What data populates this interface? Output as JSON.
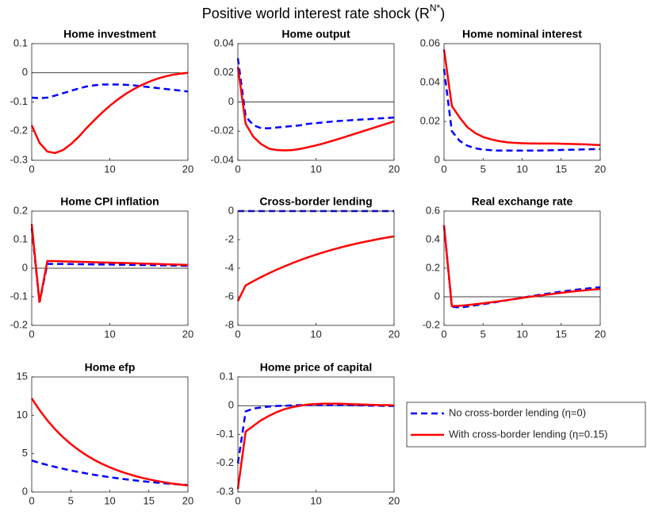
{
  "suptitle": [
    "Positive world interest rate shock (R",
    "N*",
    ")"
  ],
  "chart_data": [
    {
      "type": "line",
      "title": "Home investment",
      "x": [
        0,
        1,
        2,
        3,
        4,
        5,
        6,
        7,
        8,
        9,
        10,
        11,
        12,
        13,
        14,
        15,
        16,
        17,
        18,
        19,
        20
      ],
      "xlim": [
        0,
        20
      ],
      "xticks": [
        0,
        10,
        20
      ],
      "ylim": [
        -0.3,
        0.1
      ],
      "yticks": [
        -0.3,
        -0.2,
        -0.1,
        0,
        0.1
      ],
      "zero_line": true,
      "series": [
        {
          "name": "No cross-border lending (η=0)",
          "color": "#0000ff",
          "dashed": true,
          "values": [
            -0.085,
            -0.087,
            -0.085,
            -0.078,
            -0.07,
            -0.062,
            -0.054,
            -0.047,
            -0.043,
            -0.04,
            -0.04,
            -0.04,
            -0.041,
            -0.043,
            -0.046,
            -0.049,
            -0.052,
            -0.055,
            -0.058,
            -0.061,
            -0.064
          ]
        },
        {
          "name": "With cross-border lending (η=0.15)",
          "color": "#ff0000",
          "dashed": false,
          "values": [
            -0.18,
            -0.24,
            -0.27,
            -0.275,
            -0.265,
            -0.245,
            -0.22,
            -0.19,
            -0.163,
            -0.137,
            -0.113,
            -0.092,
            -0.073,
            -0.057,
            -0.043,
            -0.031,
            -0.021,
            -0.013,
            -0.007,
            -0.003,
            0.0
          ]
        }
      ]
    },
    {
      "type": "line",
      "title": "Home output",
      "x": [
        0,
        1,
        2,
        3,
        4,
        5,
        6,
        7,
        8,
        9,
        10,
        11,
        12,
        13,
        14,
        15,
        16,
        17,
        18,
        19,
        20
      ],
      "xlim": [
        0,
        20
      ],
      "xticks": [
        0,
        10,
        20
      ],
      "ylim": [
        -0.04,
        0.04
      ],
      "yticks": [
        -0.04,
        -0.02,
        0,
        0.02,
        0.04
      ],
      "zero_line": true,
      "series": [
        {
          "name": "No cross-border lending (η=0)",
          "color": "#0000ff",
          "dashed": true,
          "values": [
            0.03,
            -0.01,
            -0.016,
            -0.018,
            -0.018,
            -0.0175,
            -0.017,
            -0.0165,
            -0.016,
            -0.015,
            -0.0145,
            -0.014,
            -0.0135,
            -0.013,
            -0.0127,
            -0.0123,
            -0.012,
            -0.0117,
            -0.0113,
            -0.011,
            -0.0107
          ]
        },
        {
          "name": "With cross-border lending (η=0.15)",
          "color": "#ff0000",
          "dashed": false,
          "values": [
            0.024,
            -0.015,
            -0.024,
            -0.029,
            -0.032,
            -0.033,
            -0.0332,
            -0.033,
            -0.0322,
            -0.031,
            -0.0298,
            -0.0284,
            -0.0268,
            -0.0252,
            -0.0235,
            -0.0218,
            -0.0201,
            -0.0184,
            -0.0167,
            -0.015,
            -0.0133
          ]
        }
      ]
    },
    {
      "type": "line",
      "title": "Home nominal interest",
      "x": [
        0,
        1,
        2,
        3,
        4,
        5,
        6,
        7,
        8,
        9,
        10,
        11,
        12,
        13,
        14,
        15,
        16,
        17,
        18,
        19,
        20
      ],
      "xlim": [
        0,
        20
      ],
      "xticks": [
        0,
        5,
        10,
        15,
        20
      ],
      "ylim": [
        0,
        0.06
      ],
      "yticks": [
        0,
        0.02,
        0.04,
        0.06
      ],
      "zero_line": false,
      "series": [
        {
          "name": "No cross-border lending (η=0)",
          "color": "#0000ff",
          "dashed": true,
          "values": [
            0.047,
            0.015,
            0.01,
            0.0075,
            0.0062,
            0.0055,
            0.0052,
            0.005,
            0.005,
            0.005,
            0.005,
            0.005,
            0.005,
            0.0051,
            0.0052,
            0.0053,
            0.0054,
            0.0055,
            0.0056,
            0.0057,
            0.0058
          ]
        },
        {
          "name": "With cross-border lending (η=0.15)",
          "color": "#ff0000",
          "dashed": false,
          "values": [
            0.057,
            0.028,
            0.022,
            0.017,
            0.014,
            0.012,
            0.0108,
            0.0099,
            0.0093,
            0.009,
            0.0088,
            0.0087,
            0.0086,
            0.0086,
            0.0086,
            0.0085,
            0.0084,
            0.0083,
            0.0082,
            0.008,
            0.0078
          ]
        }
      ]
    },
    {
      "type": "line",
      "title": "Home CPI inflation",
      "x": [
        0,
        1,
        2,
        3,
        4,
        5,
        6,
        7,
        8,
        9,
        10,
        11,
        12,
        13,
        14,
        15,
        16,
        17,
        18,
        19,
        20
      ],
      "xlim": [
        0,
        20
      ],
      "xticks": [
        0,
        10,
        20
      ],
      "ylim": [
        -0.2,
        0.2
      ],
      "yticks": [
        -0.2,
        -0.1,
        0,
        0.1,
        0.2
      ],
      "zero_line": true,
      "series": [
        {
          "name": "No cross-border lending (η=0)",
          "color": "#0000ff",
          "dashed": true,
          "values": [
            0.14,
            -0.12,
            0.015,
            0.015,
            0.015,
            0.0145,
            0.014,
            0.0137,
            0.0133,
            0.013,
            0.0127,
            0.0123,
            0.012,
            0.0116,
            0.0112,
            0.0108,
            0.0104,
            0.01,
            0.0095,
            0.009,
            0.0085
          ]
        },
        {
          "name": "With cross-border lending (η=0.15)",
          "color": "#ff0000",
          "dashed": false,
          "values": [
            0.155,
            -0.12,
            0.025,
            0.025,
            0.024,
            0.0232,
            0.0225,
            0.0218,
            0.021,
            0.0202,
            0.0195,
            0.0187,
            0.018,
            0.0172,
            0.0164,
            0.0156,
            0.0148,
            0.014,
            0.0132,
            0.0124,
            0.0116
          ]
        }
      ]
    },
    {
      "type": "line",
      "title": "Cross-border lending",
      "x": [
        0,
        1,
        2,
        3,
        4,
        5,
        6,
        7,
        8,
        9,
        10,
        11,
        12,
        13,
        14,
        15,
        16,
        17,
        18,
        19,
        20
      ],
      "xlim": [
        0,
        20
      ],
      "xticks": [
        0,
        10,
        20
      ],
      "ylim": [
        -8,
        0
      ],
      "yticks": [
        -8,
        -6,
        -4,
        -2,
        0
      ],
      "zero_line": true,
      "series": [
        {
          "name": "No cross-border lending (η=0)",
          "color": "#0000ff",
          "dashed": true,
          "values": [
            0,
            0,
            0,
            0,
            0,
            0,
            0,
            0,
            0,
            0,
            0,
            0,
            0,
            0,
            0,
            0,
            0,
            0,
            0,
            0,
            0
          ]
        },
        {
          "name": "With cross-border lending (η=0.15)",
          "color": "#ff0000",
          "dashed": false,
          "values": [
            -6.3,
            -5.2,
            -4.9,
            -4.62,
            -4.35,
            -4.1,
            -3.86,
            -3.64,
            -3.43,
            -3.23,
            -3.05,
            -2.88,
            -2.72,
            -2.57,
            -2.43,
            -2.3,
            -2.18,
            -2.07,
            -1.96,
            -1.86,
            -1.77
          ]
        }
      ]
    },
    {
      "type": "line",
      "title": "Real exchange rate",
      "x": [
        0,
        1,
        2,
        3,
        4,
        5,
        6,
        7,
        8,
        9,
        10,
        11,
        12,
        13,
        14,
        15,
        16,
        17,
        18,
        19,
        20
      ],
      "xlim": [
        0,
        20
      ],
      "xticks": [
        0,
        5,
        10,
        15,
        20
      ],
      "ylim": [
        -0.2,
        0.6
      ],
      "yticks": [
        -0.2,
        0,
        0.2,
        0.4,
        0.6
      ],
      "zero_line": true,
      "series": [
        {
          "name": "No cross-border lending (η=0)",
          "color": "#0000ff",
          "dashed": true,
          "values": [
            0.5,
            -0.07,
            -0.075,
            -0.068,
            -0.06,
            -0.052,
            -0.043,
            -0.034,
            -0.025,
            -0.016,
            -0.007,
            0.003,
            0.012,
            0.02,
            0.028,
            0.036,
            0.043,
            0.05,
            0.056,
            0.062,
            0.067
          ]
        },
        {
          "name": "With cross-border lending (η=0.15)",
          "color": "#ff0000",
          "dashed": false,
          "values": [
            0.5,
            -0.065,
            -0.063,
            -0.058,
            -0.052,
            -0.046,
            -0.039,
            -0.032,
            -0.024,
            -0.016,
            -0.008,
            0,
            0.007,
            0.014,
            0.021,
            0.028,
            0.034,
            0.04,
            0.045,
            0.05,
            0.055
          ]
        }
      ]
    },
    {
      "type": "line",
      "title": "Home efp",
      "x": [
        0,
        1,
        2,
        3,
        4,
        5,
        6,
        7,
        8,
        9,
        10,
        11,
        12,
        13,
        14,
        15,
        16,
        17,
        18,
        19,
        20
      ],
      "xlim": [
        0,
        20
      ],
      "xticks": [
        0,
        5,
        10,
        15,
        20
      ],
      "ylim": [
        0,
        15
      ],
      "yticks": [
        0,
        5,
        10,
        15
      ],
      "zero_line": false,
      "series": [
        {
          "name": "No cross-border lending (η=0)",
          "color": "#0000ff",
          "dashed": true,
          "values": [
            4.1,
            3.8,
            3.52,
            3.27,
            3.03,
            2.81,
            2.61,
            2.42,
            2.24,
            2.08,
            1.93,
            1.79,
            1.66,
            1.54,
            1.42,
            1.32,
            1.22,
            1.13,
            1.05,
            0.98,
            0.9
          ]
        },
        {
          "name": "With cross-border lending (η=0.15)",
          "color": "#ff0000",
          "dashed": false,
          "values": [
            12.2,
            10.68,
            9.34,
            8.17,
            7.15,
            6.26,
            5.48,
            4.79,
            4.19,
            3.67,
            3.21,
            2.81,
            2.46,
            2.15,
            1.88,
            1.65,
            1.44,
            1.26,
            1.1,
            0.97,
            0.85
          ]
        }
      ]
    },
    {
      "type": "line",
      "title": "Home price of capital",
      "x": [
        0,
        1,
        2,
        3,
        4,
        5,
        6,
        7,
        8,
        9,
        10,
        11,
        12,
        13,
        14,
        15,
        16,
        17,
        18,
        19,
        20
      ],
      "xlim": [
        0,
        20
      ],
      "xticks": [
        0,
        10,
        20
      ],
      "ylim": [
        -0.3,
        0.1
      ],
      "yticks": [
        -0.3,
        -0.2,
        -0.1,
        0,
        0.1
      ],
      "zero_line": true,
      "series": [
        {
          "name": "No cross-border lending (η=0)",
          "color": "#0000ff",
          "dashed": true,
          "values": [
            -0.2,
            -0.02,
            -0.01,
            -0.006,
            -0.003,
            -0.001,
            0,
            0.001,
            0.002,
            0.002,
            0.002,
            0.002,
            0.002,
            0.002,
            0.002,
            0.001,
            0.001,
            0,
            0,
            -0.001,
            -0.001
          ]
        },
        {
          "name": "With cross-border lending (η=0.15)",
          "color": "#ff0000",
          "dashed": false,
          "values": [
            -0.29,
            -0.09,
            -0.07,
            -0.05,
            -0.035,
            -0.022,
            -0.012,
            -0.005,
            0,
            0.004,
            0.006,
            0.007,
            0.007,
            0.007,
            0.006,
            0.005,
            0.004,
            0.003,
            0.002,
            0.002,
            0.001
          ]
        }
      ]
    }
  ]
}
